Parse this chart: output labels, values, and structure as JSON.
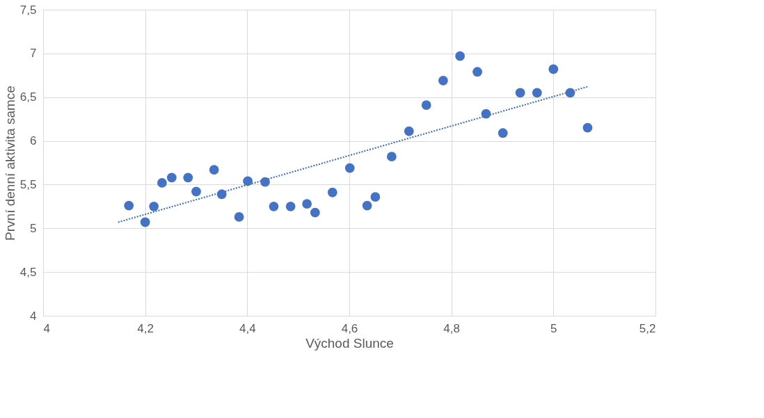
{
  "chart_data": {
    "type": "scatter",
    "xlabel": "Východ Slunce",
    "ylabel": "První denní aktivita samce",
    "xlim": [
      4,
      5.2
    ],
    "ylim": [
      4,
      7.5
    ],
    "grid": true,
    "xticks": [
      4,
      {
        "value": 4.2,
        "label": "4,2"
      },
      {
        "value": 4.4,
        "label": "4,4"
      },
      {
        "value": 4.6,
        "label": "4,6"
      },
      {
        "value": 4.8,
        "label": "4,8"
      },
      5,
      {
        "value": 5.2,
        "label": "5,2"
      }
    ],
    "yticks": [
      4,
      {
        "value": 4.5,
        "label": "4,5"
      },
      5,
      {
        "value": 5.5,
        "label": "5,5"
      },
      6,
      {
        "value": 6.5,
        "label": "6,5"
      },
      7,
      {
        "value": 7.5,
        "label": "7,5"
      }
    ],
    "series": [
      {
        "type": "scatter",
        "color": "#4472c4",
        "marker": "circle",
        "x": [
          4.168,
          4.2,
          4.217,
          4.233,
          4.252,
          4.284,
          4.3,
          4.335,
          4.35,
          4.384,
          4.401,
          4.435,
          4.452,
          4.485,
          4.517,
          4.533,
          4.567,
          4.601,
          4.635,
          4.651,
          4.683,
          4.717,
          4.751,
          4.784,
          4.817,
          4.851,
          4.868,
          4.901,
          4.935,
          4.968,
          5.0,
          5.033,
          5.067
        ],
        "values": [
          5.26,
          5.07,
          5.25,
          5.52,
          5.58,
          5.58,
          5.42,
          5.67,
          5.39,
          5.13,
          5.54,
          5.53,
          5.25,
          5.25,
          5.28,
          5.18,
          5.41,
          5.69,
          5.26,
          5.36,
          5.82,
          6.11,
          6.41,
          6.69,
          6.97,
          6.79,
          6.31,
          6.09,
          6.55,
          6.55,
          6.82,
          6.55,
          6.15
        ]
      },
      {
        "type": "line",
        "color": "#4472c4",
        "line_style": "dotted",
        "marker": "none",
        "x": [
          4.147,
          5.067
        ],
        "values": [
          5.07,
          6.62
        ]
      }
    ]
  }
}
